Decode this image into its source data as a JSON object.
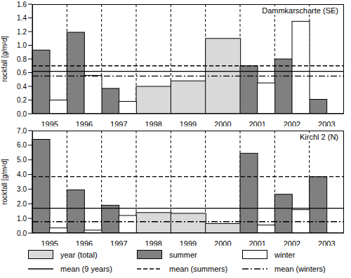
{
  "chart_data": [
    {
      "type": "bar",
      "title": "Dammkarscharte (SE)",
      "y_label": "rockfall [g/m²d]",
      "categories": [
        "1995",
        "1996",
        "1997",
        "1998",
        "1999",
        "2000",
        "2001",
        "2002",
        "2003"
      ],
      "series": [
        {
          "color": "#d9d9d9",
          "values": [
            null,
            null,
            null,
            0.4,
            0.48,
            1.1,
            null,
            null,
            null
          ]
        },
        {
          "color": "#808080",
          "values": [
            0.93,
            1.19,
            0.37,
            null,
            null,
            null,
            0.7,
            0.8,
            0.21
          ]
        },
        {
          "color": "#ffffff",
          "values": [
            0.2,
            0.56,
            0.18,
            null,
            null,
            null,
            0.45,
            1.35,
            null
          ]
        }
      ],
      "means": [
        {
          "value": 0.62,
          "line_style": "solid"
        },
        {
          "value": 0.7,
          "line_style": "dashed"
        },
        {
          "value": 0.55,
          "line_style": "dashdot"
        }
      ],
      "ylim": [
        0,
        1.6
      ],
      "yticks": [
        {
          "value": 0,
          "label": "0.0"
        },
        {
          "value": 0.2,
          "label": "0.2"
        },
        {
          "value": 0.4,
          "label": "0.4"
        },
        {
          "value": 0.6,
          "label": "0.6"
        },
        {
          "value": 0.8,
          "label": "0.8"
        },
        {
          "value": 1,
          "label": "1.0"
        },
        {
          "value": 1.2,
          "label": "1.2"
        },
        {
          "value": 1.4,
          "label": "1.4"
        },
        {
          "value": 1.6,
          "label": "1.6"
        }
      ],
      "grid": true
    },
    {
      "type": "bar",
      "title": "Kirchl 2 (N)",
      "y_label": "rockfall [g/m²d]",
      "categories": [
        "1995",
        "1996",
        "1997",
        "1998",
        "1999",
        "2000",
        "2001",
        "2002",
        "2003"
      ],
      "series": [
        {
          "name": "year (total)",
          "color": "#d9d9d9",
          "values": [
            null,
            null,
            null,
            1.4,
            1.35,
            0.65,
            null,
            null,
            null
          ]
        },
        {
          "name": "summer",
          "color": "#808080",
          "values": [
            6.4,
            2.95,
            1.9,
            null,
            null,
            null,
            5.45,
            2.65,
            3.85
          ]
        },
        {
          "name": "winter",
          "color": "#ffffff",
          "values": [
            0.35,
            0.2,
            1.2,
            null,
            null,
            null,
            0.55,
            1.6,
            null
          ]
        }
      ],
      "means": [
        {
          "name": "mean (9 years)",
          "value": 1.7,
          "line_style": "solid"
        },
        {
          "name": "mean (summers)",
          "value": 3.85,
          "line_style": "dashed"
        },
        {
          "name": "mean (winters)",
          "value": 0.78,
          "line_style": "dashdot"
        }
      ],
      "ylim": [
        0,
        7
      ],
      "yticks": [
        {
          "value": 0,
          "label": "0.0"
        },
        {
          "value": 1,
          "label": "1.0"
        },
        {
          "value": 2,
          "label": "2.0"
        },
        {
          "value": 3,
          "label": "3.0"
        },
        {
          "value": 4,
          "label": "4.0"
        },
        {
          "value": 5,
          "label": "5.0"
        },
        {
          "value": 6,
          "label": "6.0"
        },
        {
          "value": 7,
          "label": "7.0"
        }
      ],
      "grid": true,
      "legend": "bottom"
    }
  ]
}
